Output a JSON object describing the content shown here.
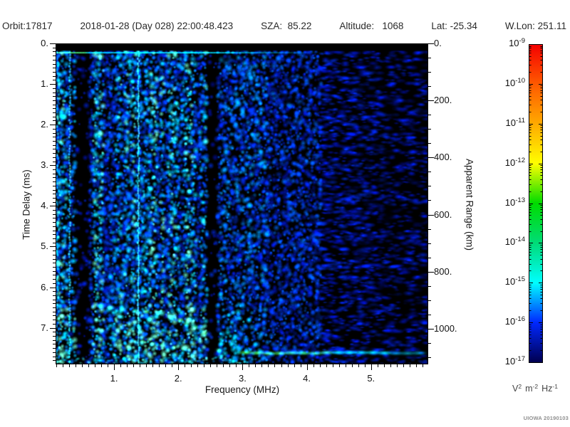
{
  "header": {
    "parts": [
      "Orbit:17817",
      "2018-01-28 (Day 028) 22:00:48.423",
      "SZA:  85.22",
      "Altitude:   1068",
      "Lat: -25.34",
      "W.Lon: 251.11"
    ]
  },
  "watermark": "UIOWA 20190103",
  "chart_data": {
    "type": "heatmap",
    "title": "",
    "xlabel": "Frequency (MHz)",
    "ylabel_left": "Time Delay (ms)",
    "ylabel_right": "Apparent Range (km)",
    "x_range_mhz": [
      0.09,
      5.89
    ],
    "x_major_ticks_mhz": [
      1,
      2,
      3,
      4,
      5
    ],
    "x_tick_labels": [
      "1.",
      "2.",
      "3.",
      "4.",
      "5."
    ],
    "x_minor_step_mhz": 0.1,
    "y_range_ms": [
      0,
      7.9
    ],
    "y_major_ticks_ms": [
      0,
      1,
      2,
      3,
      4,
      5,
      6,
      7
    ],
    "y_tick_labels": [
      "0.",
      "1.",
      "2.",
      "3.",
      "4.",
      "5.",
      "6.",
      "7."
    ],
    "y_minor_step_ms": 0.1,
    "right_range_km": [
      0,
      1125
    ],
    "right_major_ticks_km": [
      0,
      200,
      400,
      600,
      800,
      1000
    ],
    "right_tick_labels": [
      "0.",
      "200.",
      "400.",
      "600.",
      "800.",
      "1000."
    ],
    "right_minor_step_km": 50,
    "colorbar": {
      "base": "10",
      "exponents": [
        -9,
        -10,
        -11,
        -12,
        -13,
        -14,
        -15,
        -16,
        -17
      ],
      "units_parts": [
        {
          "b": "V",
          "s": "2"
        },
        {
          "b": "m",
          "s": "-2"
        },
        {
          "b": "Hz",
          "s": "-1"
        }
      ],
      "gradient_stops": [
        {
          "at": 0.0,
          "c": "#f50000"
        },
        {
          "at": 0.125,
          "c": "#ff5a00"
        },
        {
          "at": 0.25,
          "c": "#ffaa00"
        },
        {
          "at": 0.375,
          "c": "#ffff00"
        },
        {
          "at": 0.5,
          "c": "#00dc00"
        },
        {
          "at": 0.625,
          "c": "#00dc78"
        },
        {
          "at": 0.75,
          "c": "#00ffff"
        },
        {
          "at": 0.875,
          "c": "#0028ff"
        },
        {
          "at": 1.0,
          "c": "#000050"
        }
      ]
    },
    "features": {
      "seed": 20190103,
      "speckle_palette": [
        {
          "at": 0.0,
          "c": [
            0,
            0,
            70
          ]
        },
        {
          "at": 0.3,
          "c": [
            0,
            20,
            190
          ]
        },
        {
          "at": 0.55,
          "c": [
            0,
            70,
            255
          ]
        },
        {
          "at": 0.75,
          "c": [
            0,
            160,
            255
          ]
        },
        {
          "at": 0.9,
          "c": [
            0,
            225,
            255
          ]
        },
        {
          "at": 1.0,
          "c": [
            110,
            255,
            210
          ]
        }
      ],
      "noise_regions": [
        {
          "f_to": 0.29,
          "density": 0.95,
          "bright": 0.86,
          "stripe": true
        },
        {
          "f_to": 0.33,
          "density": 0.9,
          "bright": 0.8,
          "stripe": true
        },
        {
          "f_to": 0.38,
          "density": 0.8,
          "bright": 0.62,
          "stripe": true
        },
        {
          "f_to": 0.59,
          "density": 0.22,
          "bright": 0.4,
          "stripe": true
        },
        {
          "f_to": 2.47,
          "density": 0.95,
          "bright": 0.75,
          "stripe": true
        },
        {
          "f_to": 2.61,
          "density": 0.12,
          "bright": 0.35,
          "stripe": false
        },
        {
          "f_to": 3.4,
          "density": 0.85,
          "bright": 0.6,
          "stripe": false
        },
        {
          "f_to": 4.2,
          "density": 0.8,
          "bright": 0.5,
          "stripe": false
        },
        {
          "f_to": 5.89,
          "density": 0.62,
          "bright": 0.35,
          "stripe": false
        }
      ],
      "top_saturation_band": {
        "t_from_ms": 0,
        "t_to_ms": 0.18
      },
      "calibration_line": {
        "t_ms": 0.22,
        "green_to_mhz": 0.55,
        "cyan_to_mhz": 2.5,
        "fade_to_mhz": 4.3
      },
      "bright_vertical_lines_mhz": [
        0.31,
        1.38
      ],
      "dark_vertical_bands_mhz": [
        [
          0.38,
          0.59
        ],
        [
          2.47,
          2.61
        ]
      ],
      "echo_trace_points": [
        [
          0.8,
          6.46
        ],
        [
          0.94,
          6.5
        ],
        [
          1.13,
          6.55
        ],
        [
          1.33,
          6.59
        ],
        [
          1.5,
          6.6
        ],
        [
          1.69,
          6.64
        ],
        [
          1.89,
          6.73
        ],
        [
          2.03,
          6.81
        ],
        [
          2.13,
          6.9
        ],
        [
          2.27,
          6.99
        ],
        [
          2.41,
          7.13
        ]
      ],
      "echo_trace2_points": [
        [
          1.44,
          7.34
        ],
        [
          1.61,
          7.39
        ],
        [
          1.75,
          7.43
        ],
        [
          1.94,
          7.48
        ],
        [
          2.08,
          7.52
        ],
        [
          2.63,
          7.55
        ]
      ],
      "surface_reflection": {
        "t_ms": 7.62,
        "f_start_mhz": 3.05,
        "f_end_mhz": 5.85
      }
    }
  }
}
